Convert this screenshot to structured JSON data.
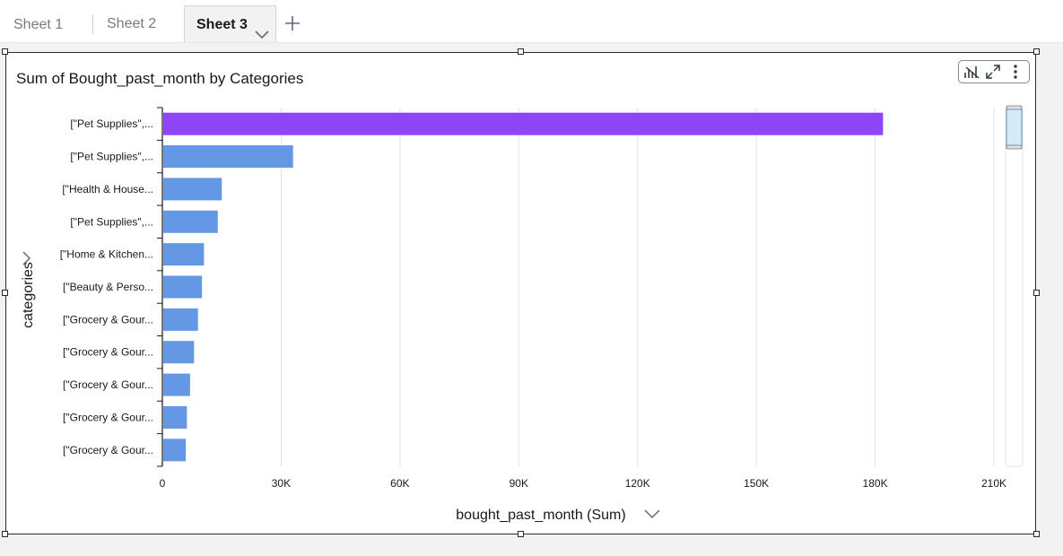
{
  "tabs": [
    {
      "label": "Sheet 1",
      "active": false
    },
    {
      "label": "Sheet 2",
      "active": false
    },
    {
      "label": "Sheet 3",
      "active": true
    }
  ],
  "visual": {
    "title": "Sum of Bought_past_month by Categories",
    "y_axis_label": "categories",
    "x_axis_label": "bought_past_month (Sum)"
  },
  "icons": {
    "tab_menu": "chevron-down-icon",
    "add_sheet": "plus-icon",
    "toolbar": [
      "chart-format-icon",
      "expand-icon",
      "more-vertical-icon"
    ],
    "axis_expand": "chevron-right-icon",
    "x_axis_menu": "chevron-down-icon"
  },
  "colors": {
    "bar": "#6497e4",
    "highlight": "#8e44f7",
    "grid": "#e3e3e3",
    "scroll_thumb": "#d4ebf7"
  },
  "chart_data": {
    "type": "bar",
    "orientation": "horizontal",
    "title": "Sum of Bought_past_month by Categories",
    "xlabel": "bought_past_month (Sum)",
    "ylabel": "categories",
    "categories": [
      "[\"Pet Supplies\",...",
      "[\"Pet Supplies\",...",
      "[\"Health & House...",
      "[\"Pet Supplies\",...",
      "[\"Home & Kitchen...",
      "[\"Beauty & Perso...",
      "[\"Grocery & Gour...",
      "[\"Grocery & Gour...",
      "[\"Grocery & Gour...",
      "[\"Grocery & Gour...",
      "[\"Grocery & Gour..."
    ],
    "values": [
      182000,
      33000,
      15000,
      14000,
      10500,
      10000,
      9000,
      8000,
      7000,
      6200,
      5900
    ],
    "highlighted_index": 0,
    "xlim": [
      0,
      210000
    ],
    "xticks": [
      0,
      30000,
      60000,
      90000,
      120000,
      150000,
      180000,
      210000
    ],
    "xtick_labels": [
      "0",
      "30K",
      "60K",
      "90K",
      "120K",
      "150K",
      "180K",
      "210K"
    ],
    "grid": true
  }
}
